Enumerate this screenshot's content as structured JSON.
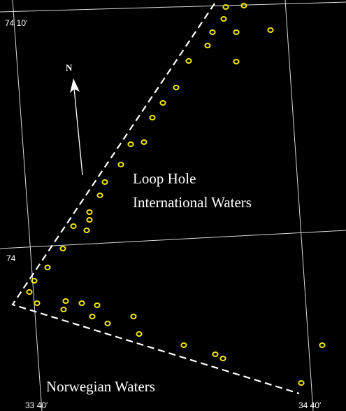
{
  "map": {
    "background": "#000000",
    "vessel_color": "#f2e400",
    "coordinates": {
      "lat_top": "74 10′",
      "lat_mid": "74",
      "lon_left": "33 40′",
      "lon_right": "34 40′"
    },
    "north_arrow": {
      "label": "N"
    },
    "regions": {
      "loophole_line1": "Loop Hole",
      "loophole_line2": "International Waters",
      "norwegian": "Norwegian Waters"
    },
    "vessel_count": 42
  }
}
